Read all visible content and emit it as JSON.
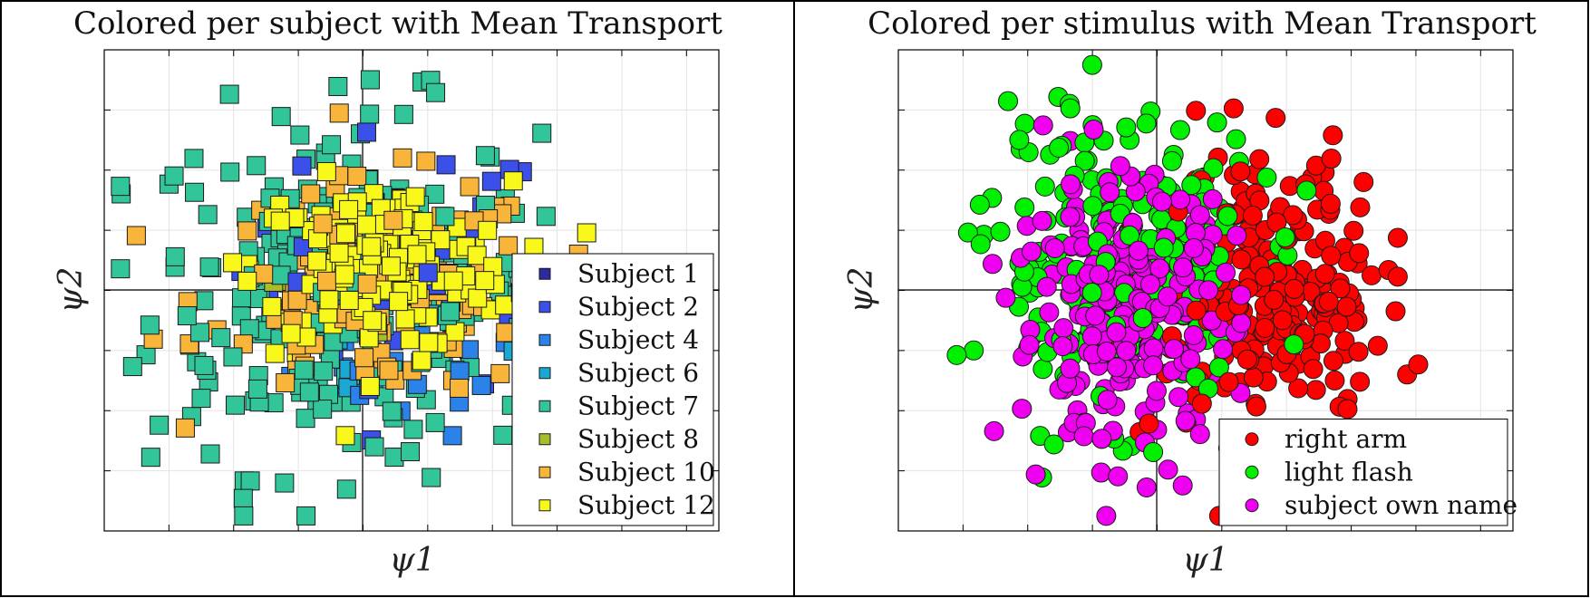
{
  "chart_data": [
    {
      "type": "scatter",
      "title": "Colored per subject with Mean Transport",
      "xlabel": "ψ1",
      "ylabel": "ψ2",
      "grid": true,
      "xlim": [
        -4,
        5.5
      ],
      "ylim": [
        -4,
        4
      ],
      "marker": "square",
      "legend_position": "bottom-right",
      "series": [
        {
          "name": "Subject 1",
          "color": "#2b2a9f",
          "n": 6
        },
        {
          "name": "Subject 2",
          "color": "#3b50e8",
          "n": 40
        },
        {
          "name": "Subject 4",
          "color": "#2b82e8",
          "n": 30
        },
        {
          "name": "Subject 6",
          "color": "#1aa7d3",
          "n": 20
        },
        {
          "name": "Subject 7",
          "color": "#32c59a",
          "n": 260
        },
        {
          "name": "Subject 8",
          "color": "#a8bd2a",
          "n": 6
        },
        {
          "name": "Subject 10",
          "color": "#f8b53a",
          "n": 130
        },
        {
          "name": "Subject 12",
          "color": "#f8f81a",
          "n": 170
        }
      ]
    },
    {
      "type": "scatter",
      "title": "Colored per stimulus with Mean Transport",
      "xlabel": "ψ1",
      "ylabel": "ψ2",
      "grid": true,
      "xlim": [
        -4,
        5.5
      ],
      "ylim": [
        -4,
        4
      ],
      "marker": "circle",
      "legend_position": "bottom-right",
      "series": [
        {
          "name": "right arm",
          "color": "#ff0000",
          "n": 260
        },
        {
          "name": "light flash",
          "color": "#00f000",
          "n": 230
        },
        {
          "name": "subject own name",
          "color": "#f000f0",
          "n": 260
        }
      ]
    }
  ]
}
